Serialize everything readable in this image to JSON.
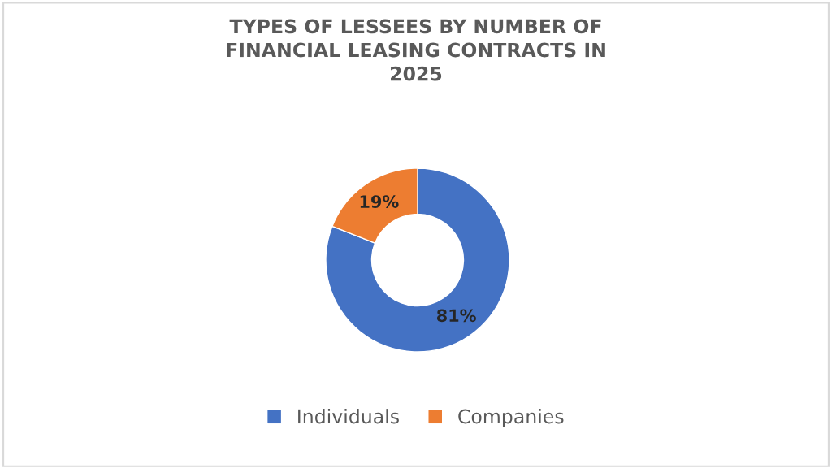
{
  "chart_data": {
    "type": "donut",
    "title": "TYPES OF LESSEES BY NUMBER OF\nFINANCIAL LEASING CONTRACTS IN\n2025",
    "categories": [
      "Individuals",
      "Companies"
    ],
    "values": [
      81,
      19
    ],
    "colors": [
      "#4472c4",
      "#ed7d31"
    ],
    "value_labels": [
      "81%",
      "19%"
    ],
    "legend": "bottom"
  }
}
